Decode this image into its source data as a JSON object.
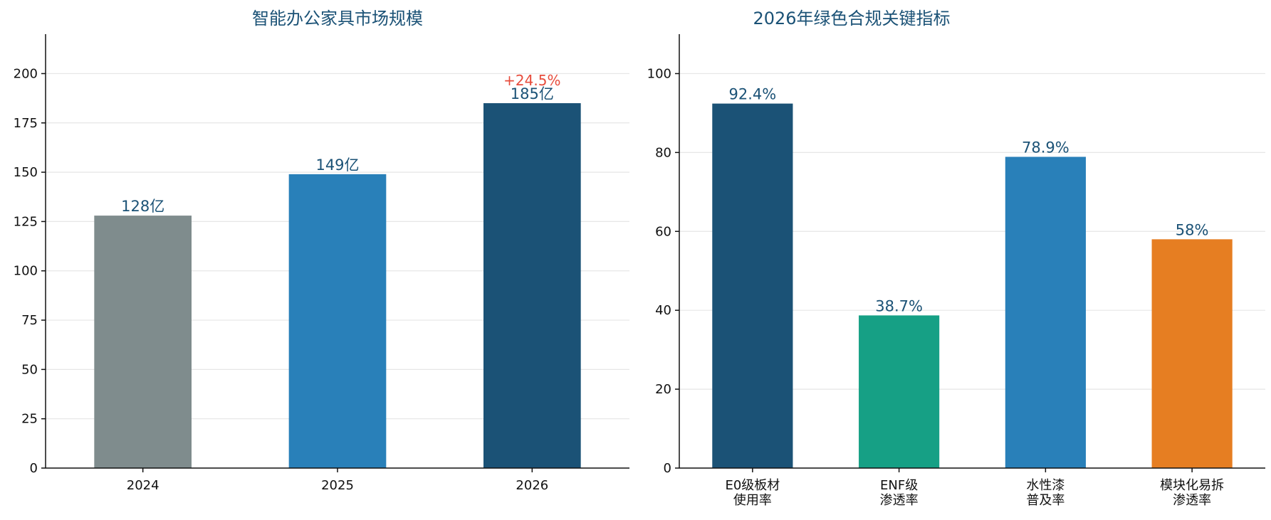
{
  "chart_data": [
    {
      "type": "bar",
      "title": "智能办公家具市场规模",
      "categories": [
        "2024",
        "2025",
        "2026"
      ],
      "values": [
        128,
        149,
        185
      ],
      "value_labels": [
        "128亿",
        "149亿",
        "185亿"
      ],
      "colors": [
        "#7f8c8d",
        "#2980b9",
        "#1b5276"
      ],
      "annotations": [
        {
          "category": "2026",
          "text": "+24.5%",
          "color": "#e74c3c"
        }
      ],
      "ylim": [
        0,
        220
      ],
      "yticks": [
        0,
        25,
        50,
        75,
        100,
        125,
        150,
        175,
        200
      ],
      "grid": true,
      "xlabel": "",
      "ylabel": ""
    },
    {
      "type": "bar",
      "title": "2026年绿色合规关键指标",
      "categories": [
        [
          "E0级板材",
          "使用率"
        ],
        [
          "ENF级",
          "渗透率"
        ],
        [
          "水性漆",
          "普及率"
        ],
        [
          "模块化易拆",
          "渗透率"
        ]
      ],
      "values": [
        92.4,
        38.7,
        78.9,
        58
      ],
      "value_labels": [
        "92.4%",
        "38.7%",
        "78.9%",
        "58%"
      ],
      "colors": [
        "#1b5276",
        "#16a085",
        "#2980b9",
        "#e67e22"
      ],
      "ylim": [
        0,
        110
      ],
      "yticks": [
        0,
        20,
        40,
        60,
        80,
        100
      ],
      "grid": true,
      "xlabel": "",
      "ylabel": ""
    }
  ]
}
